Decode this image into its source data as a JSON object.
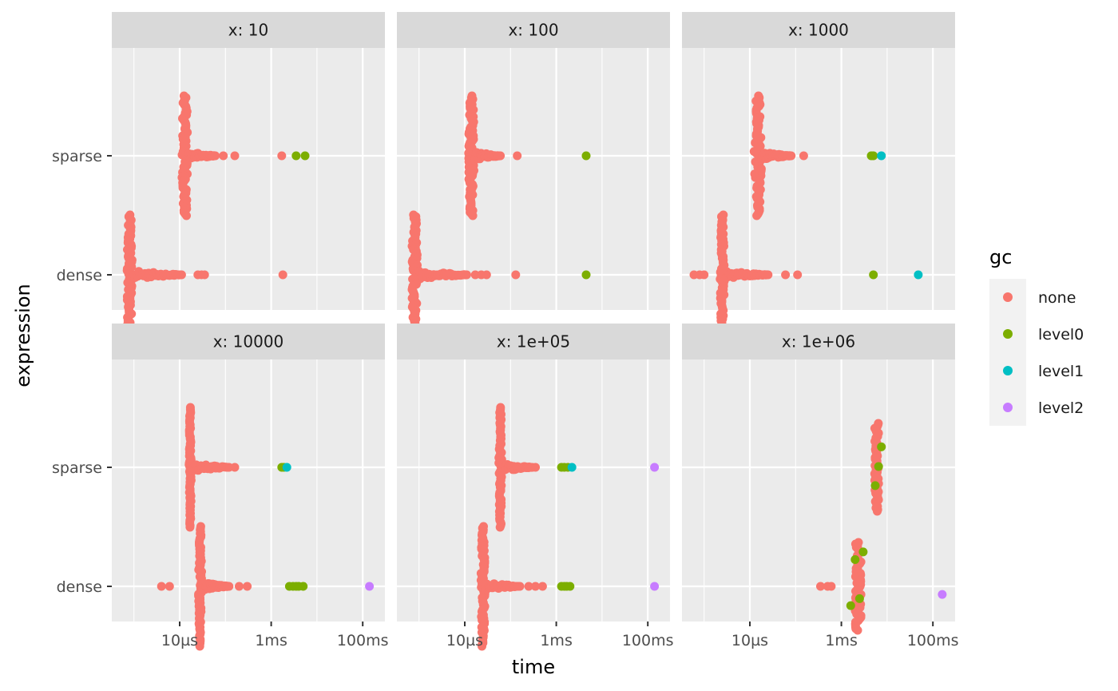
{
  "chart_data": {
    "type": "scatter",
    "xlabel": "time",
    "ylabel": "expression",
    "x_scale": "log10",
    "x_tick_values": [
      1e-05,
      0.001,
      0.1
    ],
    "x_tick_labels": [
      "10µs",
      "1ms",
      "100ms"
    ],
    "xlim": [
      5e-07,
      0.2
    ],
    "y_categories": [
      "dense",
      "sparse"
    ],
    "legend": {
      "title": "gc",
      "position": "right",
      "entries": [
        {
          "key": "none",
          "label": "none",
          "color": "#F8766D"
        },
        {
          "key": "level0",
          "label": "level0",
          "color": "#7CAE00"
        },
        {
          "key": "level1",
          "label": "level1",
          "color": "#00BFC4"
        },
        {
          "key": "level2",
          "label": "level2",
          "color": "#C77CFF"
        }
      ]
    },
    "facets": [
      {
        "label": "x: 10",
        "panels": {
          "sparse": {
            "none": {
              "mode_s": 1.3e-05,
              "mode_range": [
                1.1e-05,
                1.6e-05
              ],
              "tail_to_s": 6e-05,
              "outliers_s": [
                9e-05,
                0.00016,
                0.0017
              ]
            },
            "level0": [
              0.0035,
              0.0055
            ]
          },
          "dense": {
            "none": {
              "mode_s": 8e-07,
              "mode_range": [
                7e-07,
                1e-06
              ],
              "tail_to_s": 1.1e-05,
              "outliers_s": [
                2.5e-05,
                3e-05,
                3.5e-05,
                0.0018
              ]
            }
          }
        }
      },
      {
        "label": "x: 100",
        "panels": {
          "sparse": {
            "none": {
              "mode_s": 1.4e-05,
              "mode_range": [
                1.2e-05,
                1.7e-05
              ],
              "tail_to_s": 6e-05,
              "outliers_s": [
                0.00014
              ]
            },
            "level0": [
              0.0045
            ]
          },
          "dense": {
            "none": {
              "mode_s": 8e-07,
              "mode_range": [
                7e-07,
                1e-06
              ],
              "tail_to_s": 1.1e-05,
              "outliers_s": [
                1.7e-05,
                2.3e-05,
                3e-05,
                0.00013
              ]
            },
            "level0": [
              0.0045
            ]
          }
        }
      },
      {
        "label": "x: 1000",
        "panels": {
          "sparse": {
            "none": {
              "mode_s": 1.5e-05,
              "mode_range": [
                1.2e-05,
                1.8e-05
              ],
              "tail_to_s": 8e-05,
              "outliers_s": [
                0.00015
              ]
            },
            "level0": [
              0.0045,
              0.005
            ],
            "level1": [
              0.0075
            ]
          },
          "dense": {
            "none": {
              "mode_s": 2.5e-06,
              "mode_range": [
                2.2e-06,
                2.8e-06
              ],
              "tail_to_s": 2.5e-05,
              "outliers_s": [
                6e-07,
                8e-07,
                1e-06,
                6e-05,
                0.00011
              ]
            },
            "level0": [
              0.005
            ],
            "level1": [
              0.048
            ]
          }
        }
      },
      {
        "label": "x: 10000",
        "panels": {
          "sparse": {
            "none": {
              "mode_s": 1.7e-05,
              "mode_range": [
                1.6e-05,
                1.8e-05
              ],
              "tail_to_s": 0.00012,
              "outliers_s": [
                0.00016
              ]
            },
            "level0": [
              0.0017,
              0.0019
            ],
            "level1": [
              0.0022
            ]
          },
          "dense": {
            "none": {
              "mode_s": 2.8e-05,
              "mode_range": [
                2.5e-05,
                3e-05
              ],
              "tail_to_s": 0.00012,
              "outliers_s": [
                4e-06,
                6e-06,
                0.0002,
                0.0003
              ]
            },
            "level0": [
              0.0025,
              0.003,
              0.0035,
              0.004,
              0.005
            ],
            "level2": [
              0.14
            ]
          }
        }
      },
      {
        "label": "x: 1e+05",
        "panels": {
          "sparse": {
            "none": {
              "mode_s": 6e-05,
              "mode_range": [
                5.5e-05,
                6.5e-05
              ],
              "tail_to_s": 0.0003,
              "outliers_s": [
                0.00035
              ]
            },
            "level0": [
              0.0013,
              0.0015,
              0.0018
            ],
            "level1": [
              0.0022
            ],
            "level2": [
              0.14
            ]
          },
          "dense": {
            "none": {
              "mode_s": 2.5e-05,
              "mode_range": [
                2.2e-05,
                2.8e-05
              ],
              "tail_to_s": 0.00016,
              "outliers_s": [
                0.00025,
                0.00035,
                0.0005
              ]
            },
            "level0": [
              0.0013,
              0.0015,
              0.0017,
              0.002
            ],
            "level2": [
              0.14
            ]
          }
        }
      },
      {
        "label": "x: 1e+06",
        "panels": {
          "sparse": {
            "none": {
              "cluster_range": [
                0.005,
                0.007
              ]
            },
            "level0": [
              0.0055,
              0.0065,
              0.0075
            ]
          },
          "dense": {
            "none": {
              "cluster_range": [
                0.0018,
                0.003
              ],
              "outliers_s": [
                0.00035,
                0.0005,
                0.0006
              ]
            },
            "level0": [
              0.0016,
              0.002,
              0.0025,
              0.003
            ],
            "level2": [
              0.16
            ]
          }
        }
      }
    ]
  }
}
